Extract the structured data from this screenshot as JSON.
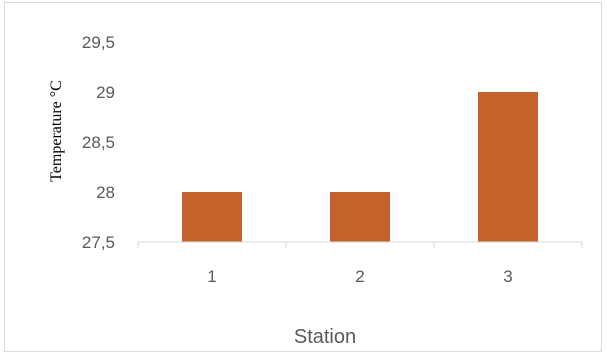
{
  "chart_data": {
    "type": "bar",
    "categories": [
      "1",
      "2",
      "3"
    ],
    "values": [
      28,
      28,
      29
    ],
    "xlabel": "Station",
    "ylabel": "Temperature °C",
    "ylim": [
      27.5,
      29.5
    ],
    "yticks": [
      "27,5",
      "28",
      "28,5",
      "29",
      "29,5"
    ],
    "ytick_values": [
      27.5,
      28,
      28.5,
      29,
      29.5
    ],
    "bar_color": "#C4622B",
    "axis_color": "#d9d9d9",
    "grid": false,
    "legend": "none"
  }
}
